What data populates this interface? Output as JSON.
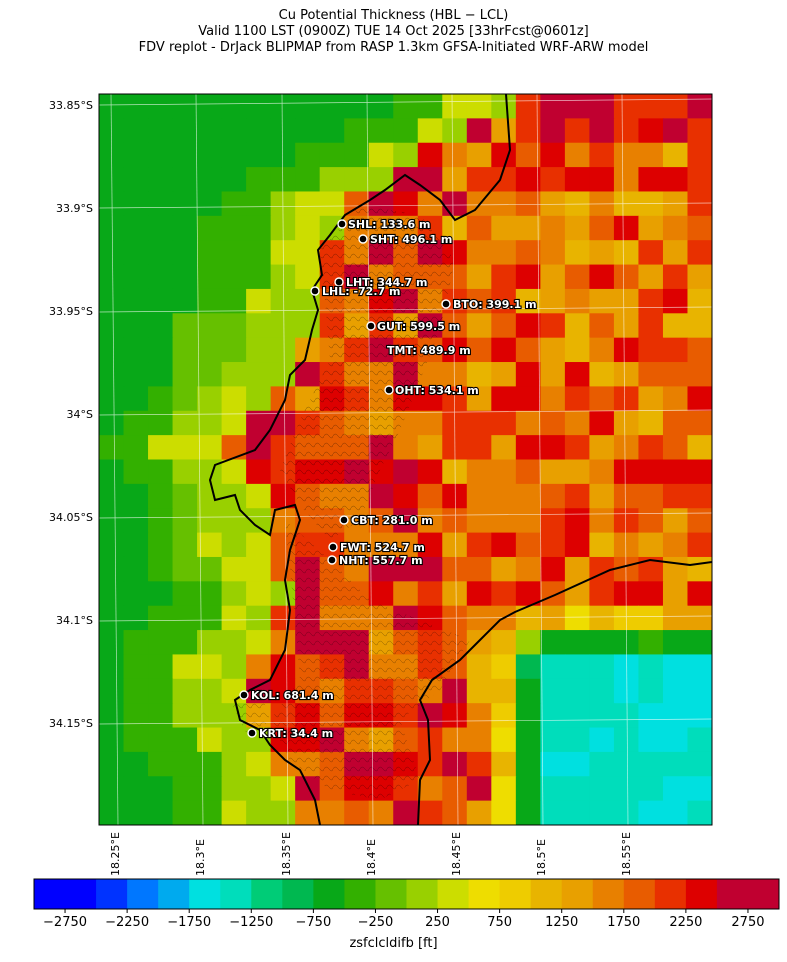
{
  "titles": {
    "line1": "Cu Potential Thickness (HBL − LCL)",
    "line2": "Valid 1100 LST (0900Z) TUE 14 Oct 2025 [33hrFcst@0601z]",
    "line3": "FDV replot - DrJack BLIPMAP from RASP 1.3km GFSA-Initiated WRF-ARW model"
  },
  "lat_labels": [
    "33.85°S",
    "33.9°S",
    "33.95°S",
    "34°S",
    "34.05°S",
    "34.1°S",
    "34.15°S"
  ],
  "lon_labels": [
    "18.25°E",
    "18.3°E",
    "18.35°E",
    "18.4°E",
    "18.45°E",
    "18.5°E",
    "18.55°E"
  ],
  "colorbar": {
    "title": "zsfclcldifb [ft]",
    "tick_labels": [
      "−2750",
      "−2250",
      "−1750",
      "−1250",
      "−750",
      "−250",
      "250",
      "750",
      "1250",
      "1750",
      "2250",
      "2750"
    ],
    "min": -3000,
    "max": 3000,
    "step": 250,
    "colors": [
      "#0000ff",
      "#0033ff",
      "#0077ff",
      "#00aaee",
      "#00e0e0",
      "#00ddbb",
      "#00cc77",
      "#00b850",
      "#08a818",
      "#33b000",
      "#66c000",
      "#99d000",
      "#ccdd00",
      "#eedd00",
      "#eecc00",
      "#e8b400",
      "#e8a000",
      "#e88000",
      "#e85c00",
      "#e83000",
      "#dd0000",
      "#c00030"
    ]
  },
  "stations": [
    {
      "label": "SHL: 133.6 m"
    },
    {
      "label": "SHT: 496.1 m"
    },
    {
      "label": "LHT: 344.7 m"
    },
    {
      "label": "LHL: -72.7 m"
    },
    {
      "label": "BTO: 399.1 m"
    },
    {
      "label": "GUT: 599.5 m"
    },
    {
      "label": "TMT: 489.9 m"
    },
    {
      "label": "OHT: 534.1 m"
    },
    {
      "label": "CBT: 281.0 m"
    },
    {
      "label": "FWT: 524.7 m"
    },
    {
      "label": "NHT: 557.7 m"
    },
    {
      "label": "KOL: 681.4 m"
    },
    {
      "label": "KRT: 34.4 m"
    }
  ]
}
